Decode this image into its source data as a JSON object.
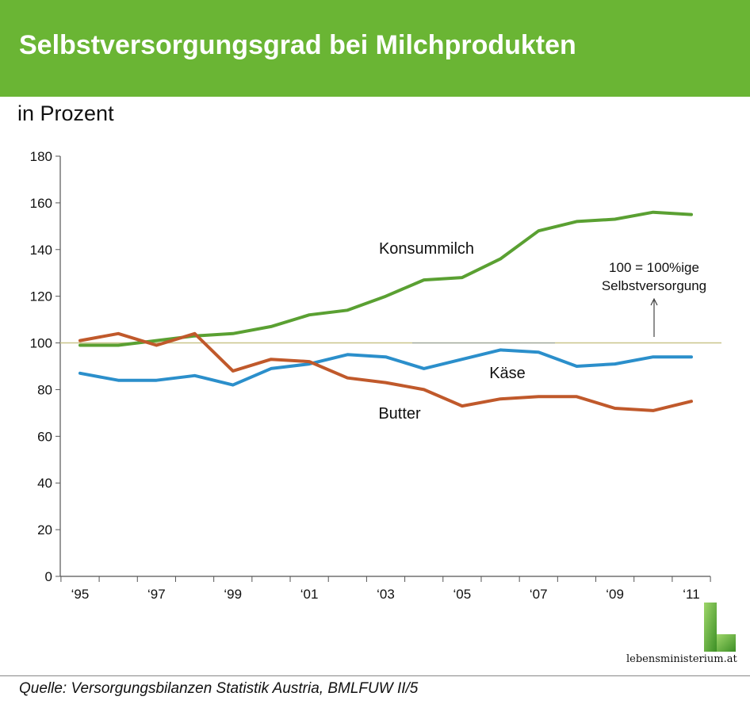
{
  "header": {
    "title": "Selbstversorgungsgrad bei Milchprodukten"
  },
  "unit_label": "in Prozent",
  "annotation": {
    "line1": "100 = 100%ige",
    "line2": "Selbstversorgung"
  },
  "source": "Quelle: Versorgungsbilanzen Statistik Austria, BMLFUW II/5",
  "logo": {
    "text": "lebensministerium.at"
  },
  "chart_data": {
    "type": "line",
    "title": "Selbstversorgungsgrad bei Milchprodukten",
    "ylabel": "in Prozent",
    "xlabel": "",
    "ylim": [
      0,
      180
    ],
    "yticks": [
      0,
      20,
      40,
      60,
      80,
      100,
      120,
      140,
      160,
      180
    ],
    "x": [
      1995,
      1996,
      1997,
      1998,
      1999,
      2000,
      2001,
      2002,
      2003,
      2004,
      2005,
      2006,
      2007,
      2008,
      2009,
      2010,
      2011
    ],
    "xtick_labels": [
      "‘95",
      "‘97",
      "‘99",
      "‘01",
      "‘03",
      "‘05",
      "‘07",
      "‘09",
      "‘11"
    ],
    "reference_line": 100,
    "grid": false,
    "legend": "none",
    "series": [
      {
        "name": "Konsummilch",
        "color": "#5aa032",
        "values": [
          99,
          99,
          101,
          103,
          104,
          107,
          112,
          114,
          120,
          127,
          128,
          136,
          148,
          152,
          153,
          156,
          155
        ]
      },
      {
        "name": "Käse",
        "color": "#2b8fcb",
        "values": [
          87,
          84,
          84,
          86,
          82,
          89,
          91,
          95,
          94,
          89,
          93,
          97,
          96,
          90,
          91,
          94,
          94
        ]
      },
      {
        "name": "Butter",
        "color": "#c0592b",
        "values": [
          101,
          104,
          99,
          104,
          88,
          93,
          92,
          85,
          83,
          80,
          73,
          76,
          77,
          77,
          72,
          71,
          75
        ]
      }
    ]
  }
}
